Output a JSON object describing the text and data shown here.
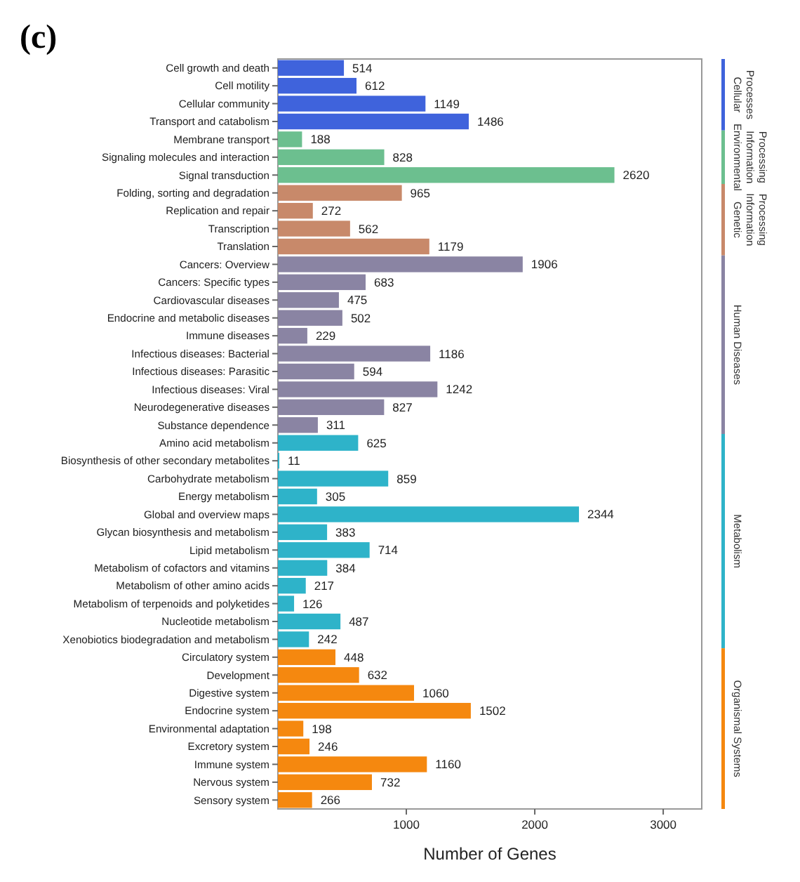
{
  "chart_data": {
    "type": "bar",
    "orientation": "horizontal",
    "title": "(c)",
    "xlabel": "Number of Genes",
    "xlim": [
      0,
      3300
    ],
    "xticks": [
      1000,
      2000,
      3000
    ],
    "data_labels": true,
    "grid": false,
    "legend": "right",
    "categories": [
      "Cell growth and death",
      "Cell motility",
      "Cellular community",
      "Transport and catabolism",
      "Membrane transport",
      "Signaling molecules and interaction",
      "Signal transduction",
      "Folding, sorting and degradation",
      "Replication and repair",
      "Transcription",
      "Translation",
      "Cancers: Overview",
      "Cancers: Specific types",
      "Cardiovascular diseases",
      "Endocrine and metabolic diseases",
      "Immune diseases",
      "Infectious diseases: Bacterial",
      "Infectious diseases: Parasitic",
      "Infectious diseases: Viral",
      "Neurodegenerative diseases",
      "Substance dependence",
      "Amino acid metabolism",
      "Biosynthesis of other secondary metabolites",
      "Carbohydrate metabolism",
      "Energy metabolism",
      "Global and overview maps",
      "Glycan biosynthesis and metabolism",
      "Lipid metabolism",
      "Metabolism of cofactors and vitamins",
      "Metabolism of other amino acids",
      "Metabolism of terpenoids and polyketides",
      "Nucleotide metabolism",
      "Xenobiotics biodegradation and metabolism",
      "Circulatory system",
      "Development",
      "Digestive system",
      "Endocrine system",
      "Environmental adaptation",
      "Excretory system",
      "Immune system",
      "Nervous system",
      "Sensory system"
    ],
    "series": [
      {
        "name": "Cellular Processes",
        "color": "#3f63dc",
        "values": [
          514,
          612,
          1149,
          1486,
          null,
          null,
          null,
          null,
          null,
          null,
          null,
          null,
          null,
          null,
          null,
          null,
          null,
          null,
          null,
          null,
          null,
          null,
          null,
          null,
          null,
          null,
          null,
          null,
          null,
          null,
          null,
          null,
          null,
          null,
          null,
          null,
          null,
          null,
          null,
          null,
          null,
          null
        ]
      },
      {
        "name": "Environmental Information Processing",
        "color": "#6cbf8f",
        "values": [
          null,
          null,
          null,
          null,
          188,
          828,
          2620,
          null,
          null,
          null,
          null,
          null,
          null,
          null,
          null,
          null,
          null,
          null,
          null,
          null,
          null,
          null,
          null,
          null,
          null,
          null,
          null,
          null,
          null,
          null,
          null,
          null,
          null,
          null,
          null,
          null,
          null,
          null,
          null,
          null,
          null,
          null
        ]
      },
      {
        "name": "Genetic Information Processing",
        "color": "#c8896a",
        "values": [
          null,
          null,
          null,
          null,
          null,
          null,
          null,
          965,
          272,
          562,
          1179,
          null,
          null,
          null,
          null,
          null,
          null,
          null,
          null,
          null,
          null,
          null,
          null,
          null,
          null,
          null,
          null,
          null,
          null,
          null,
          null,
          null,
          null,
          null,
          null,
          null,
          null,
          null,
          null,
          null,
          null,
          null
        ]
      },
      {
        "name": "Human Diseases",
        "color": "#8a84a3",
        "values": [
          null,
          null,
          null,
          null,
          null,
          null,
          null,
          null,
          null,
          null,
          null,
          1906,
          683,
          475,
          502,
          229,
          1186,
          594,
          1242,
          827,
          311,
          null,
          null,
          null,
          null,
          null,
          null,
          null,
          null,
          null,
          null,
          null,
          null,
          null,
          null,
          null,
          null,
          null,
          null,
          null,
          null,
          null
        ]
      },
      {
        "name": "Metabolism",
        "color": "#2eb3c9",
        "values": [
          null,
          null,
          null,
          null,
          null,
          null,
          null,
          null,
          null,
          null,
          null,
          null,
          null,
          null,
          null,
          null,
          null,
          null,
          null,
          null,
          null,
          625,
          11,
          859,
          305,
          2344,
          383,
          714,
          384,
          217,
          126,
          487,
          242,
          null,
          null,
          null,
          null,
          null,
          null,
          null,
          null,
          null
        ]
      },
      {
        "name": "Organismal Systems",
        "color": "#f5880f",
        "values": [
          null,
          null,
          null,
          null,
          null,
          null,
          null,
          null,
          null,
          null,
          null,
          null,
          null,
          null,
          null,
          null,
          null,
          null,
          null,
          null,
          null,
          null,
          null,
          null,
          null,
          null,
          null,
          null,
          null,
          null,
          null,
          null,
          null,
          448,
          632,
          1060,
          1502,
          198,
          246,
          1160,
          732,
          266
        ]
      }
    ]
  }
}
